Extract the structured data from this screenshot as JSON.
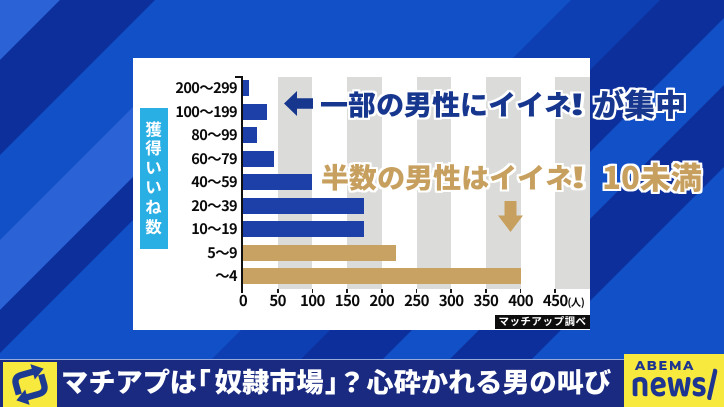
{
  "chart_data": {
    "type": "bar",
    "orientation": "horizontal",
    "title": "",
    "categories": [
      "200〜299",
      "100〜199",
      "80〜99",
      "60〜79",
      "40〜59",
      "20〜39",
      "10〜19",
      "5〜9",
      "〜4"
    ],
    "values": [
      8,
      35,
      20,
      45,
      100,
      175,
      175,
      220,
      400
    ],
    "bar_colors": [
      "#1d40a8",
      "#1d40a8",
      "#1d40a8",
      "#1d40a8",
      "#1d40a8",
      "#1d40a8",
      "#1d40a8",
      "#c8a263",
      "#c8a263"
    ],
    "ylabel": "獲得いいね数",
    "xlabel_unit": "(人)",
    "xlim": [
      0,
      500
    ],
    "xticks": [
      0,
      50,
      100,
      150,
      200,
      250,
      300,
      350,
      400,
      450
    ],
    "grid": "alternating vertical bands every 50",
    "legend": null,
    "source": "マッチアップ調べ"
  },
  "annotations": {
    "callout1": {
      "icon": "arrow-left",
      "text": "一部の男性にイイネ!",
      "emphasis": "が集中",
      "color": "#17378f"
    },
    "callout2": {
      "text": "半数の男性はイイネ!",
      "emphasis": "10未満",
      "color": "#c7a05f",
      "icon": "arrow-down"
    }
  },
  "banner": {
    "headline": "マチアプは「奴隷市場」？心砕かれる男の叫び",
    "background": "#1a2a80",
    "accent_yellow": "#f8e93f"
  },
  "logo": {
    "line1": "ABEMA",
    "line2": "news/",
    "color": "#1d3490",
    "background": "#f8e93f"
  },
  "colors": {
    "bg_royal": "#1150c6",
    "bg_dark": "#0d2f9c",
    "bg_light": "#2b63d6",
    "panel": "#ffffff",
    "plot_band": "#dbdbd9",
    "bar_blue": "#1d40a8",
    "bar_tan": "#c8a263",
    "ylabel_box": "#2aafe4"
  }
}
